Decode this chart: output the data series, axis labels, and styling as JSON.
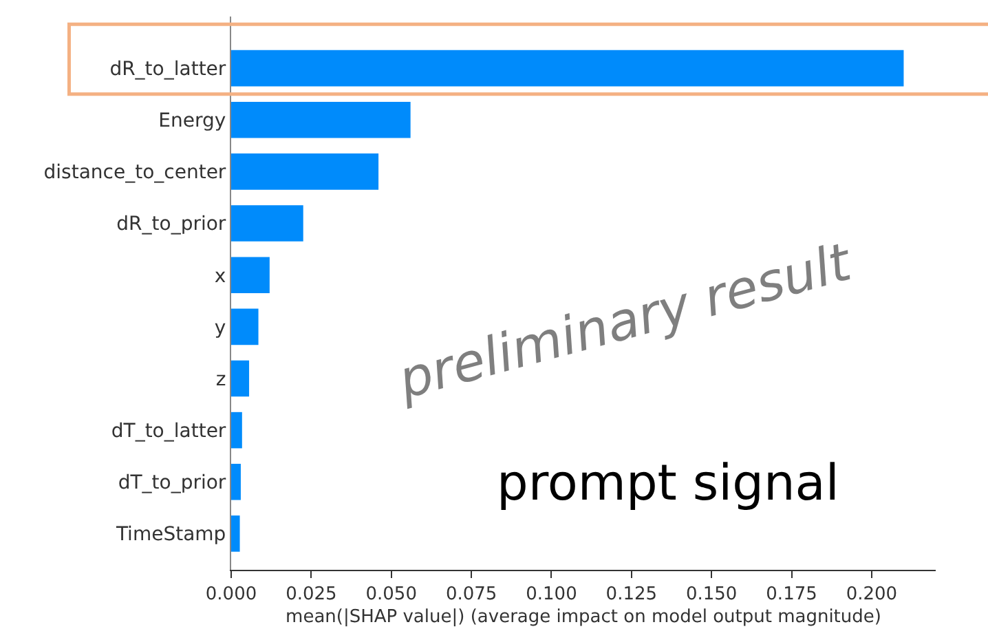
{
  "chart_data": {
    "type": "bar",
    "orientation": "horizontal",
    "categories": [
      "dR_to_latter",
      "Energy",
      "distance_to_center",
      "dR_to_prior",
      "x",
      "y",
      "z",
      "dT_to_latter",
      "dT_to_prior",
      "TimeStamp"
    ],
    "values": [
      0.21,
      0.056,
      0.046,
      0.0225,
      0.012,
      0.0085,
      0.0056,
      0.0034,
      0.003,
      0.0027
    ],
    "color": "#008bfb",
    "xlabel": "mean(|SHAP value|) (average impact on model output magnitude)",
    "xlim": [
      0,
      0.22
    ],
    "xticks": [
      {
        "value": 0,
        "label": "0.000"
      },
      0.025,
      {
        "value": 0.05,
        "label": "0.050"
      },
      0.075,
      {
        "value": 0.1,
        "label": "0.100"
      },
      0.125,
      {
        "value": 0.15,
        "label": "0.150"
      },
      0.175,
      {
        "value": 0.2,
        "label": "0.200"
      }
    ],
    "annotations": [
      "preliminary result",
      "prompt signal"
    ]
  }
}
